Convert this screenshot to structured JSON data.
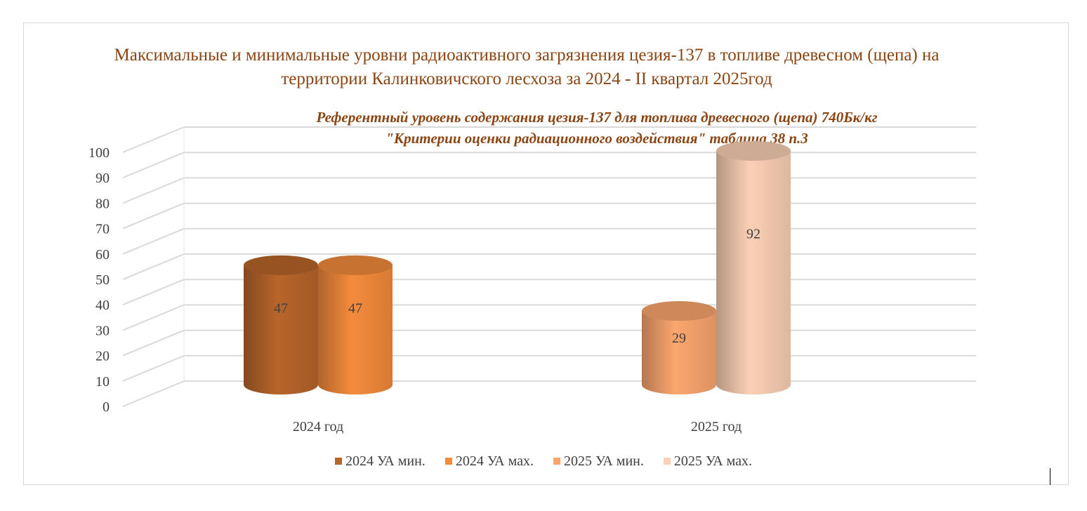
{
  "chart_data": {
    "type": "bar",
    "style": "3d-cylinder",
    "title": "Максимальные и минимальные уровни радиоактивного загрязнения  цезия-137 в топливе древесном (щепа) на территории Калинковичского лесхоза за 2024 - II квартал 2025год",
    "subtitle_line1": "Референтный уровень содержания цезия-137 для топлива древесного (щепа) 740Бк/кг",
    "subtitle_line2": "\"Критерии оценки радиационного воздействия\" таблица 38 п.3",
    "categories": [
      "2024 год",
      "2025 год"
    ],
    "series": [
      {
        "name": "2024 УА мин.",
        "color": "#b8652a",
        "values": [
          47,
          null
        ]
      },
      {
        "name": "2024 УА мах.",
        "color": "#f48b3c",
        "values": [
          47,
          null
        ]
      },
      {
        "name": "2025 УА мин.",
        "color": "#fba66e",
        "values": [
          null,
          29
        ]
      },
      {
        "name": "2025 УА мах.",
        "color": "#fbd0b5",
        "values": [
          null,
          92
        ]
      }
    ],
    "ylim": [
      0,
      100
    ],
    "yticks": [
      "0",
      "10",
      "20",
      "30",
      "40",
      "50",
      "60",
      "70",
      "80",
      "90",
      "100"
    ],
    "grid": true,
    "legend": "bottom"
  }
}
